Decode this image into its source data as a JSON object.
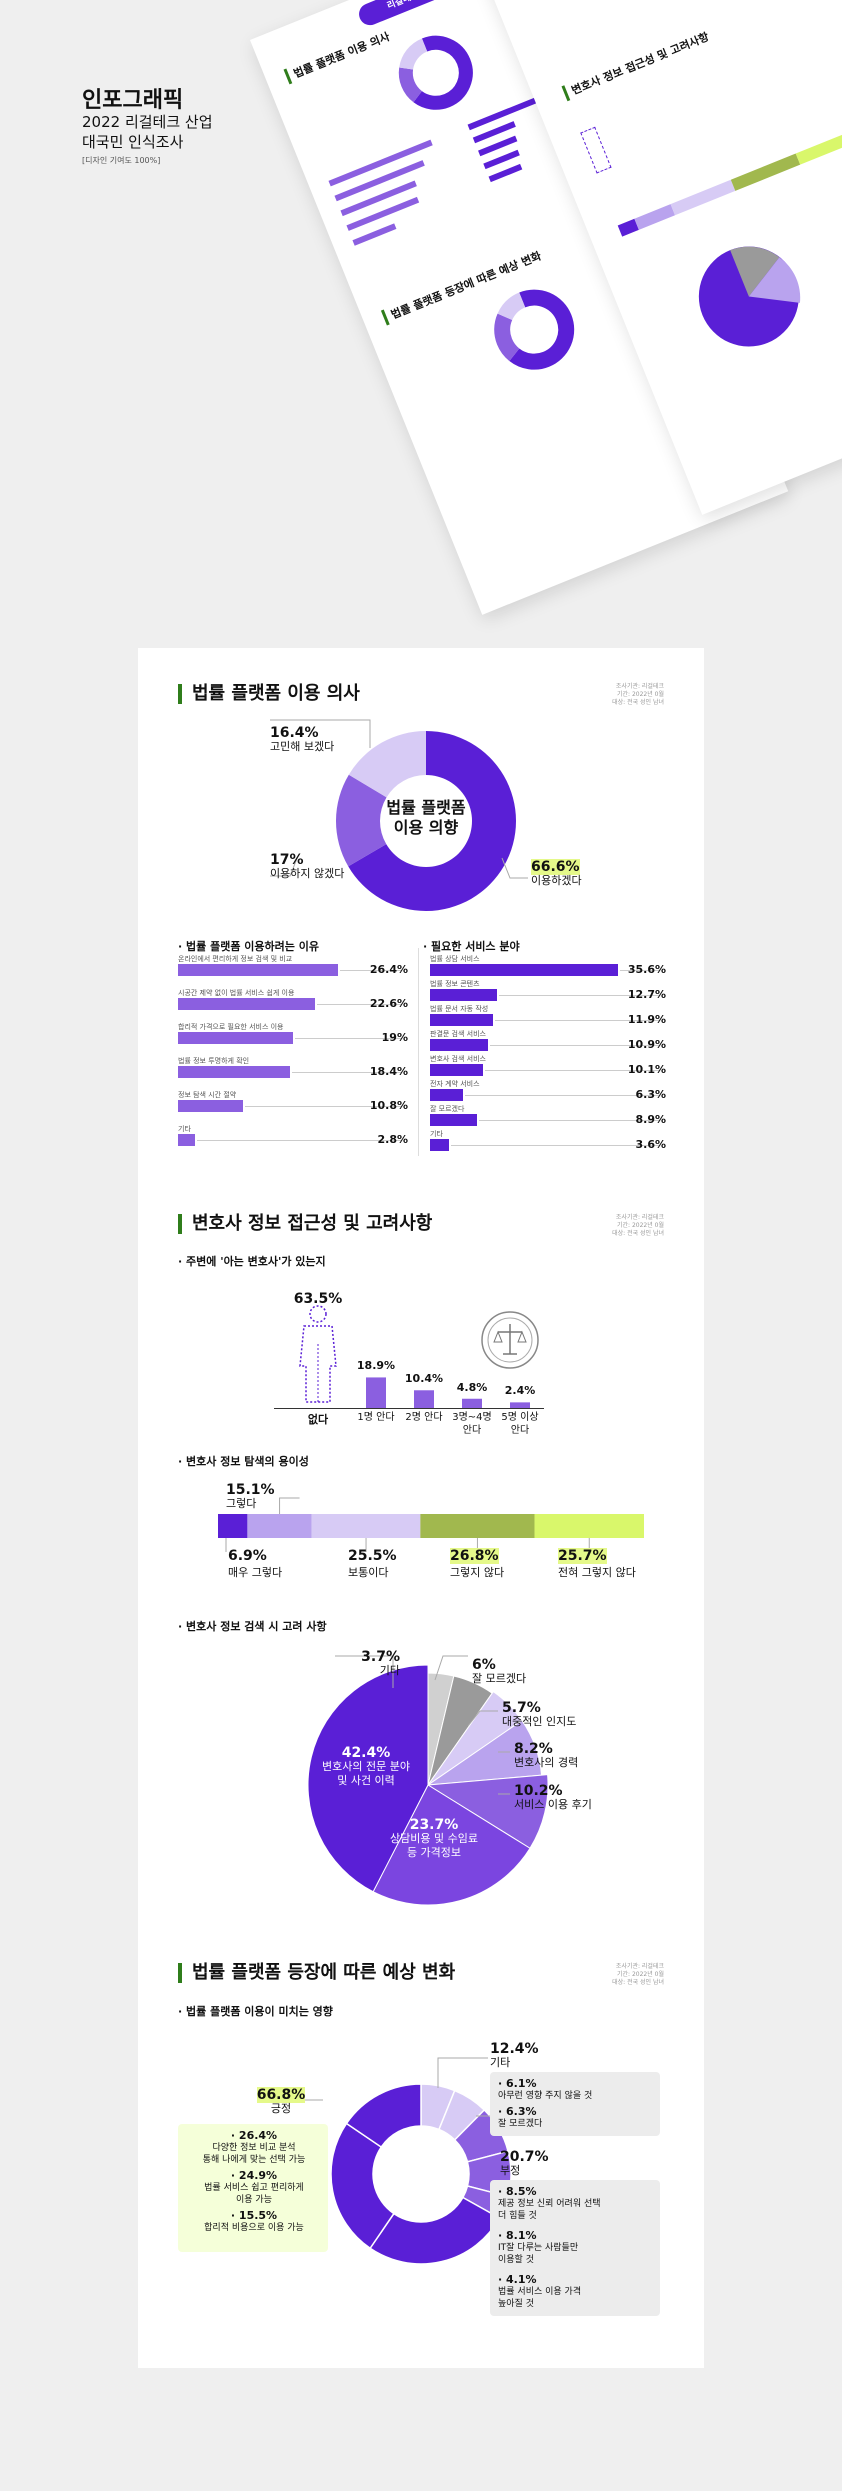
{
  "hero": {
    "title": "인포그래픽",
    "line1": "2022 리걸테크 산업",
    "line2": "대국민 인식조사",
    "tag": "[디자인 기여도 100%]",
    "banner": "리걸테크 산업 관련 대국민 인식 조사"
  },
  "colors": {
    "purple": "#5a1fd6",
    "mid": "#8b5fe0",
    "light": "#b9a3ee",
    "pale": "#d7cbf5",
    "green": "#a1b84e",
    "lime": "#d9f76b",
    "gray": "#9a9a9a",
    "lightgray": "#d0d0d0"
  },
  "s1": {
    "title": "법률 플랫폼 이용 의사",
    "meta": [
      "조사기관: 리걸테크",
      "기간: 2022년 0월",
      "대상: 전국 성인 남녀"
    ],
    "donut_center": [
      "법률 플랫폼",
      "이용 의향"
    ],
    "labels": {
      "a_pct": "16.4%",
      "a_txt": "고민해 보겠다",
      "b_pct": "17%",
      "b_txt": "이용하지 않겠다",
      "c_pct": "66.6%",
      "c_txt": "이용하겠다"
    },
    "reasons_title": "· 법률 플랫폼 이용하려는 이유",
    "services_title": "· 필요한 서비스 분야"
  },
  "s2": {
    "title": "변호사 정보 접근성 및 고려사항",
    "meta": [
      "조사기관: 리걸테크",
      "기간: 2022년 0월",
      "대상: 전국 성인 남녀"
    ],
    "q1": "· 주변에 '아는 변호사'가 있는지",
    "q2": "· 변호사 정보 탐색의 용이성",
    "q3": "· 변호사 정보 검색 시 고려 사항",
    "none_pct": "63.5%",
    "know_labels": [
      {
        "pct": "18.9%",
        "txt": "1명 안다"
      },
      {
        "pct": "10.4%",
        "txt": "2명 안다"
      },
      {
        "pct": "4.8%",
        "txt": "3명~4명\n안다"
      },
      {
        "pct": "2.4%",
        "txt": "5명 이상\n안다"
      }
    ],
    "none_txt": "없다",
    "ease_labels": {
      "p1": "6.9%",
      "t1": "매우 그렇다",
      "p2": "15.1%",
      "t2": "그렇다",
      "p3": "25.5%",
      "t3": "보통이다",
      "p4": "26.8%",
      "t4": "그렇지 않다",
      "p5": "25.7%",
      "t5": "전혀 그렇지 않다"
    },
    "pie_labels": {
      "big_pct": "42.4%",
      "big_txt": "변호사의 전문 분야\n및 사건 이력",
      "cost_pct": "23.7%",
      "cost_txt": "상담비용 및 수임료\n등 가격정보",
      "etc_pct": "3.7%",
      "etc_txt": "기타",
      "unk_pct": "6%",
      "unk_txt": "잘 모르겠다",
      "fame_pct": "5.7%",
      "fame_txt": "대중적인 인지도",
      "career_pct": "8.2%",
      "career_txt": "변호사의 경력",
      "review_pct": "10.2%",
      "review_txt": "서비스 이용 후기"
    }
  },
  "s3": {
    "title": "법률 플랫폼 등장에 따른 예상 변화",
    "meta": [
      "조사기관: 리걸테크",
      "기간: 2022년 0월",
      "대상: 전국 성인 남녀"
    ],
    "q": "· 법률 플랫폼 이용이 미치는 영향",
    "pos_pct": "66.8%",
    "pos_txt": "긍정",
    "pos_items": [
      {
        "pct": "· 26.4%",
        "txt": "다양한 정보 비교 분석\n통해 나에게 맞는 선택 가능"
      },
      {
        "pct": "· 24.9%",
        "txt": "법률 서비스 쉽고 편리하게\n이용 가능"
      },
      {
        "pct": "· 15.5%",
        "txt": "합리적 비용으로 이용 가능"
      }
    ],
    "etc_pct": "12.4%",
    "etc_txt": "기타",
    "etc_items": [
      {
        "pct": "· 6.1%",
        "txt": "아무런 영향 주지 않을 것"
      },
      {
        "pct": "· 6.3%",
        "txt": "잘 모르겠다"
      }
    ],
    "neg_pct": "20.7%",
    "neg_txt": "부정",
    "neg_items": [
      {
        "pct": "· 8.5%",
        "txt": "제공 정보 신뢰 어려워 선택\n더 힘들 것"
      },
      {
        "pct": "· 8.1%",
        "txt": "IT잘 다루는 사람들만\n이용할 것"
      },
      {
        "pct": "· 4.1%",
        "txt": "법률 서비스 이용 가격\n높아질 것"
      }
    ]
  },
  "chart_data": [
    {
      "type": "pie",
      "title": "법률 플랫폼 이용 의사",
      "categories": [
        "이용하겠다",
        "이용하지 않겠다",
        "고민해 보겠다"
      ],
      "values": [
        66.6,
        17,
        16.4
      ]
    },
    {
      "type": "bar",
      "title": "법률 플랫폼 이용하려는 이유",
      "categories": [
        "온라인에서 편리하게 정보 검색 및 비교",
        "시공간 제약 없이 법률 서비스 쉽게 이용",
        "합리적 가격으로 필요한 서비스 이용",
        "법률 정보 투명하게 확인",
        "정보 탐색 시간 절약",
        "기타"
      ],
      "values": [
        26.4,
        22.6,
        19,
        18.4,
        10.8,
        2.8
      ],
      "labels": [
        "26.4%",
        "22.6%",
        "19%",
        "18.4%",
        "10.8%",
        "2.8%"
      ]
    },
    {
      "type": "bar",
      "title": "필요한 서비스 분야",
      "categories": [
        "법률 상담 서비스",
        "법률 정보 콘텐츠",
        "법률 문서 자동 작성",
        "판결문 검색 서비스",
        "변호사 검색 서비스",
        "전자 계약 서비스",
        "잘 모르겠다",
        "기타"
      ],
      "values": [
        35.6,
        12.7,
        11.9,
        10.9,
        10.1,
        6.3,
        8.9,
        3.6
      ],
      "labels": [
        "35.6%",
        "12.7%",
        "11.9%",
        "10.9%",
        "10.1%",
        "6.3%",
        "8.9%",
        "3.6%"
      ]
    },
    {
      "type": "bar",
      "title": "주변에 '아는 변호사'가 있는지",
      "categories": [
        "없다",
        "1명 안다",
        "2명 안다",
        "3명~4명 안다",
        "5명 이상 안다"
      ],
      "values": [
        63.5,
        18.9,
        10.4,
        4.8,
        2.4
      ]
    },
    {
      "type": "bar",
      "title": "변호사 정보 탐색의 용이성",
      "categories": [
        "매우 그렇다",
        "그렇다",
        "보통이다",
        "그렇지 않다",
        "전혀 그렇지 않다"
      ],
      "values": [
        6.9,
        15.1,
        25.5,
        26.8,
        25.7
      ]
    },
    {
      "type": "pie",
      "title": "변호사 정보 검색 시 고려 사항",
      "categories": [
        "변호사의 전문 분야 및 사건 이력",
        "상담비용 및 수임료 등 가격정보",
        "서비스 이용 후기",
        "변호사의 경력",
        "대중적인 인지도",
        "잘 모르겠다",
        "기타"
      ],
      "values": [
        42.4,
        23.7,
        10.2,
        8.2,
        5.7,
        6,
        3.7
      ]
    },
    {
      "type": "pie",
      "title": "법률 플랫폼 이용이 미치는 영향",
      "categories": [
        "다양한 정보 비교 분석 통해 나에게 맞는 선택 가능",
        "법률 서비스 쉽고 편리하게 이용 가능",
        "합리적 비용으로 이용 가능",
        "아무런 영향 주지 않을 것",
        "잘 모르겠다",
        "제공 정보 신뢰 어려워 선택 더 힘들 것",
        "IT잘 다루는 사람들만 이용할 것",
        "법률 서비스 이용 가격 높아질 것"
      ],
      "values": [
        26.4,
        24.9,
        15.5,
        6.1,
        6.3,
        8.5,
        8.1,
        4.1
      ]
    }
  ]
}
